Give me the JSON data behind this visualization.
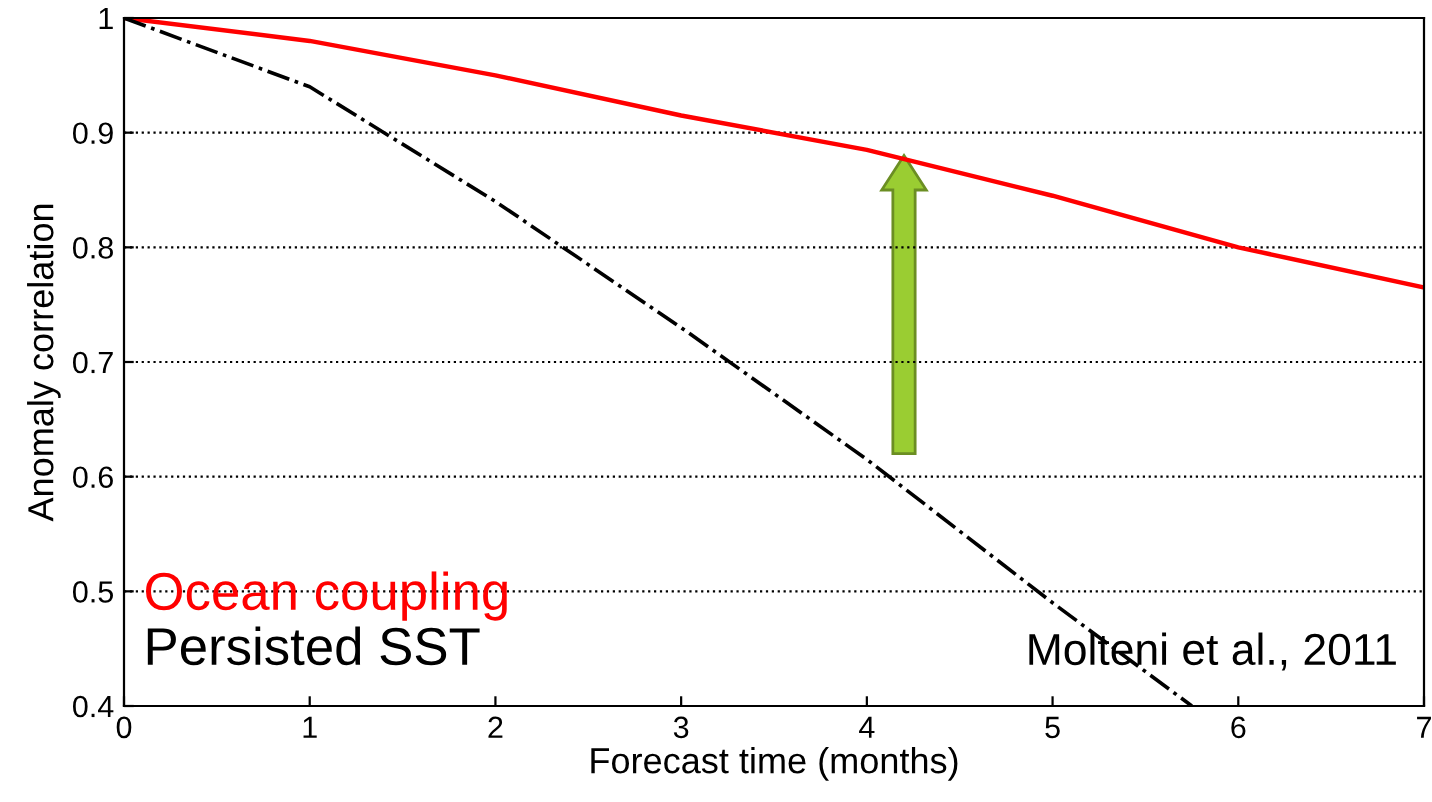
{
  "chart_data": {
    "type": "line",
    "xlabel": "Forecast time (months)",
    "ylabel": "Anomaly correlation",
    "series": [
      {
        "name": "Ocean coupling",
        "color": "#ff0000",
        "line_style": "solid",
        "x": [
          0,
          1,
          2,
          3,
          4,
          5,
          6,
          7
        ],
        "values": [
          1,
          0.98,
          0.95,
          0.915,
          0.885,
          0.845,
          0.8,
          0.765
        ]
      },
      {
        "name": "Persisted SST",
        "color": "#000000",
        "line_style": "dashdot",
        "x": [
          0,
          1,
          2,
          3,
          4,
          5,
          5.75
        ],
        "values": [
          1,
          0.94,
          0.84,
          0.73,
          0.615,
          0.49,
          0.4
        ]
      }
    ],
    "xlim": [
      0,
      7
    ],
    "ylim": [
      0.4,
      1
    ],
    "xticks": [
      0,
      1,
      2,
      3,
      4,
      5,
      6,
      7
    ],
    "yticks": [
      0.4,
      0.5,
      0.6,
      0.7,
      0.8,
      0.9,
      1
    ],
    "grid": "y",
    "annotations": [
      "Molteni et al., 2011"
    ]
  }
}
